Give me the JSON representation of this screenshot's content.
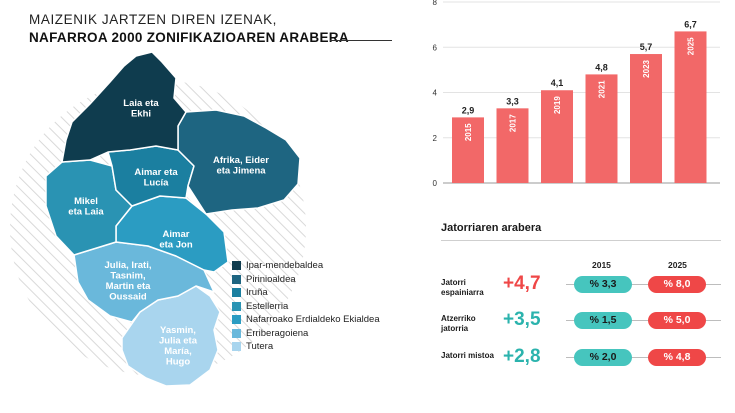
{
  "map": {
    "title_line1": "MAIZENIK JARTZEN DIREN IZENAK,",
    "title_line2": "NAFARROA 2000 ZONIFIKAZIOAREN ARABERA",
    "regions": [
      {
        "id": "ipar",
        "lines": [
          "Laia eta",
          "Ekhi"
        ],
        "color": "#0f3c4e"
      },
      {
        "id": "pirinio",
        "lines": [
          "Afrika, Eider",
          "eta Jimena"
        ],
        "color": "#1e6581"
      },
      {
        "id": "iruna",
        "lines": [
          "Aimar eta",
          "Lucía"
        ],
        "color": "#1b7fa0"
      },
      {
        "id": "estelle",
        "lines": [
          "Mikel",
          "eta Laia"
        ],
        "color": "#2a93b3"
      },
      {
        "id": "erdialde",
        "lines": [
          "Aimar",
          "eta Jon"
        ],
        "color": "#2b9cc2"
      },
      {
        "id": "erribera",
        "lines": [
          "Julia, Irati,",
          "Tasnim,",
          "Martin eta",
          "Oussaid"
        ],
        "color": "#6ab8db"
      },
      {
        "id": "tutera",
        "lines": [
          "Yasmin,",
          "Julia eta",
          "María,",
          "Hugo"
        ],
        "color": "#a9d5ee"
      }
    ],
    "legend": [
      {
        "label": "Ipar-mendebaldea",
        "color": "#0f3c4e"
      },
      {
        "label": "Pirinioaldea",
        "color": "#1e6581"
      },
      {
        "label": "Iruña",
        "color": "#1b7fa0"
      },
      {
        "label": "Estellerria",
        "color": "#2a93b3"
      },
      {
        "label": "Nafarroako Erdialdeko Ekialdea",
        "color": "#2b9cc2"
      },
      {
        "label": "Erriberagoiena",
        "color": "#6ab8db"
      },
      {
        "label": "Tutera",
        "color": "#a9d5ee"
      }
    ]
  },
  "chart_data": [
    {
      "type": "bar",
      "categories": [
        "2015",
        "2017",
        "2019",
        "2021",
        "2023",
        "2025"
      ],
      "values": [
        2.9,
        3.3,
        4.1,
        4.8,
        5.7,
        6.7
      ],
      "value_labels": [
        "2,9",
        "3,3",
        "4,1",
        "4,8",
        "5,7",
        "6,7"
      ],
      "yticks": [
        "0",
        "2",
        "4",
        "6",
        "8"
      ],
      "ylim": [
        0,
        8
      ],
      "bar_color": "#f26868",
      "grid": true,
      "title": "",
      "xlabel": "",
      "ylabel": ""
    },
    {
      "type": "table",
      "title": "Jatorriaren arabera",
      "columns": [
        "2015",
        "2025"
      ],
      "rows": [
        {
          "label": "Jatorri espainiarra",
          "change": "+4,7",
          "change_color": "#ef4747",
          "v2015": "% 3,3",
          "v2025": "% 8,0"
        },
        {
          "label": "Atzerriko jatorria",
          "change": "+3,5",
          "change_color": "#2bb3ad",
          "v2015": "% 1,5",
          "v2025": "% 5,0"
        },
        {
          "label": "Jatorri mistoa",
          "change": "+2,8",
          "change_color": "#2bb3ad",
          "v2015": "% 2,0",
          "v2025": "% 4,8"
        }
      ]
    }
  ]
}
